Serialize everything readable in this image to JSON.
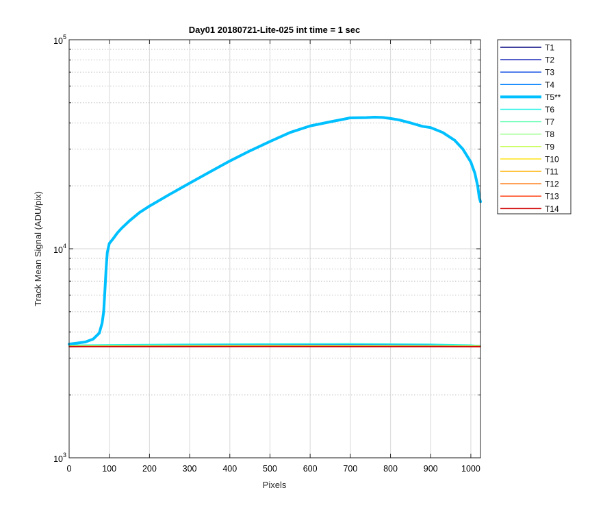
{
  "chart_data": {
    "type": "line",
    "title": "Day01 20180721-Lite-025 int time = 1 sec",
    "xlabel": "Pixels",
    "ylabel": "Track Mean Signal (ADU/pix)",
    "xlim": [
      0,
      1024
    ],
    "ylim": [
      1000,
      100000
    ],
    "yscale": "log",
    "grid": true,
    "legend_position": "outside-right",
    "x_ticks": [
      0,
      100,
      200,
      300,
      400,
      500,
      600,
      700,
      800,
      900,
      1000
    ],
    "x_tick_labels": [
      "0",
      "100",
      "200",
      "300",
      "400",
      "500",
      "600",
      "700",
      "800",
      "900",
      "1000"
    ],
    "y_ticks": [
      1000,
      10000,
      100000
    ],
    "y_tick_labels": [
      {
        "base": "10",
        "exp": "3"
      },
      {
        "base": "10",
        "exp": "4"
      },
      {
        "base": "10",
        "exp": "5"
      }
    ],
    "series": [
      {
        "name": "T1",
        "color": "#00007f",
        "width": 1.4,
        "x": [
          0,
          500,
          1024
        ],
        "y": [
          3420,
          3425,
          3420
        ]
      },
      {
        "name": "T2",
        "color": "#0010b0",
        "width": 1.4,
        "x": [
          0,
          500,
          1024
        ],
        "y": [
          3430,
          3440,
          3430
        ]
      },
      {
        "name": "T3",
        "color": "#0040e0",
        "width": 1.4,
        "x": [
          0,
          500,
          1024
        ],
        "y": [
          3440,
          3455,
          3440
        ]
      },
      {
        "name": "T4",
        "color": "#0080ff",
        "width": 1.4,
        "x": [
          0,
          200,
          500,
          800,
          1024
        ],
        "y": [
          3460,
          3475,
          3490,
          3485,
          3450
        ]
      },
      {
        "name": "T5**",
        "color": "#00c0ff",
        "width": 4,
        "x": [
          0,
          40,
          60,
          75,
          82,
          86,
          88,
          90,
          92,
          95,
          100,
          110,
          120,
          130,
          150,
          175,
          200,
          250,
          300,
          350,
          400,
          450,
          500,
          550,
          600,
          650,
          700,
          740,
          760,
          780,
          800,
          820,
          850,
          880,
          900,
          930,
          960,
          980,
          1000,
          1010,
          1017,
          1021,
          1024
        ],
        "y": [
          3500,
          3580,
          3700,
          3950,
          4400,
          5000,
          5800,
          6800,
          8000,
          9600,
          10600,
          11200,
          11900,
          12500,
          13600,
          14900,
          16000,
          18200,
          20600,
          23300,
          26300,
          29400,
          32600,
          36000,
          38700,
          40500,
          42300,
          42400,
          42600,
          42500,
          42000,
          41400,
          40000,
          38500,
          38000,
          36000,
          33000,
          30000,
          26000,
          23000,
          20000,
          17600,
          16800
        ]
      },
      {
        "name": "T6",
        "color": "#26f2e6",
        "width": 1.4,
        "x": [
          0,
          100,
          300,
          500,
          700,
          900,
          1000,
          1024
        ],
        "y": [
          3460,
          3480,
          3500,
          3510,
          3515,
          3500,
          3470,
          3440
        ]
      },
      {
        "name": "T7",
        "color": "#60ffb0",
        "width": 1.4,
        "x": [
          0,
          500,
          1024
        ],
        "y": [
          3440,
          3460,
          3440
        ]
      },
      {
        "name": "T8",
        "color": "#90ff80",
        "width": 1.4,
        "x": [
          0,
          500,
          1024
        ],
        "y": [
          3430,
          3445,
          3430
        ]
      },
      {
        "name": "T9",
        "color": "#c0ff40",
        "width": 1.4,
        "x": [
          0,
          500,
          1024
        ],
        "y": [
          3425,
          3435,
          3425
        ]
      },
      {
        "name": "T10",
        "color": "#ffe000",
        "width": 1.4,
        "x": [
          0,
          500,
          1024
        ],
        "y": [
          3420,
          3428,
          3420
        ]
      },
      {
        "name": "T11",
        "color": "#ffb000",
        "width": 1.4,
        "x": [
          0,
          500,
          1024
        ],
        "y": [
          3415,
          3420,
          3415
        ]
      },
      {
        "name": "T12",
        "color": "#ff7000",
        "width": 1.4,
        "x": [
          0,
          500,
          1024
        ],
        "y": [
          3410,
          3415,
          3410
        ]
      },
      {
        "name": "T13",
        "color": "#ff3000",
        "width": 1.4,
        "x": [
          0,
          500,
          1024
        ],
        "y": [
          3405,
          3410,
          3405
        ]
      },
      {
        "name": "T14",
        "color": "#d00000",
        "width": 1.6,
        "x": [
          0,
          500,
          1024
        ],
        "y": [
          3400,
          3405,
          3400
        ]
      }
    ]
  }
}
